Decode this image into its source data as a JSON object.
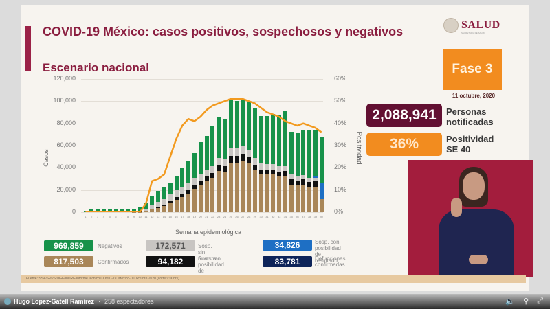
{
  "header": {
    "title": "COVID-19 México: casos positivos, sospechosos y negativos",
    "subtitle": "Escenario nacional",
    "logo_text": "SALUD",
    "logo_sub": "SECRETARÍA DE SALUD",
    "phase": "Fase 3",
    "date": "11 octubre, 2020"
  },
  "stats": {
    "notified_value": "2,088,941",
    "notified_label_1": "Personas",
    "notified_label_2": "notificadas",
    "positivity_value": "36%",
    "positivity_label_1": "Positividad",
    "positivity_label_2": "SE 40"
  },
  "legend": {
    "negativos_value": "969,859",
    "negativos_label": "Negativos",
    "confirmados_value": "817,503",
    "confirmados_label": "Confirmados",
    "sin_muestra_value": "172,571",
    "sin_muestra_label": "Sosp. sin muestra",
    "sin_posibilidad_value": "94,182",
    "sin_posibilidad_label_1": "Sosp. sin posibilidad",
    "sin_posibilidad_label_2": "de resultado",
    "con_posibilidad_value": "34,826",
    "con_posibilidad_label_1": "Sosp. con posibilidad",
    "con_posibilidad_label_2": "de resultado",
    "defunciones_value": "83,781",
    "defunciones_label_1": "Defunciones",
    "defunciones_label_2": "confirmadas"
  },
  "colors": {
    "confirmados": "#a98658",
    "sin_posibilidad": "#111111",
    "sin_muestra": "#c8c5c2",
    "negativos": "#17924a",
    "con_posibilidad": "#1e6fc4",
    "defunciones": "#0e2459",
    "positividad": "#f29a1f",
    "title": "#8a1d3f"
  },
  "source": "Fuente: SSA/SPPS/DGE/InDRE/Informe técnico COVID-19 /México- 11 octubre 2020 (corte 9:00hrs)",
  "stream": {
    "channel": "Hugo Lopez-Gatell Ramirez",
    "separator": "·",
    "viewers": "258 espectadores"
  },
  "chart_data": {
    "type": "bar",
    "stacked": true,
    "title": "COVID-19 México: casos positivos, sospechosos y negativos",
    "xlabel": "Semana epidemiológica",
    "ylabel": "Casos",
    "y2label": "Positividad",
    "ylim": [
      0,
      120000
    ],
    "y2lim": [
      0,
      60
    ],
    "yticks": [
      "0",
      "20,000",
      "40,000",
      "60,000",
      "80,000",
      "100,000",
      "120,000"
    ],
    "y2ticks": [
      "0%",
      "10%",
      "20%",
      "30%",
      "40%",
      "50%",
      "60%"
    ],
    "grid": true,
    "categories": [
      "1",
      "2",
      "3",
      "4",
      "5",
      "6",
      "7",
      "8",
      "9",
      "10",
      "11",
      "12",
      "13",
      "14",
      "15",
      "16",
      "17",
      "18",
      "19",
      "20",
      "21",
      "22",
      "23",
      "24",
      "25",
      "26",
      "27",
      "28",
      "29",
      "30",
      "31",
      "32",
      "33",
      "34",
      "35",
      "36",
      "37",
      "38",
      "39",
      "40"
    ],
    "series": [
      {
        "name": "Confirmados",
        "values": [
          0,
          0,
          0,
          0,
          0,
          0,
          0,
          0,
          100,
          300,
          1000,
          2500,
          4000,
          5500,
          8500,
          11000,
          13500,
          17000,
          21000,
          24000,
          28000,
          31000,
          37000,
          36000,
          44000,
          44000,
          46000,
          44000,
          38000,
          34000,
          34000,
          34000,
          32000,
          32000,
          25000,
          24000,
          25000,
          22000,
          22000,
          12000
        ]
      },
      {
        "name": "Sosp. sin posibilidad de resultado",
        "values": [
          0,
          0,
          0,
          0,
          0,
          0,
          0,
          0,
          0,
          100,
          300,
          700,
          1000,
          1500,
          2000,
          2500,
          3000,
          3500,
          4000,
          4000,
          4500,
          4500,
          5500,
          5500,
          7000,
          7000,
          6500,
          5500,
          5000,
          4500,
          4500,
          4500,
          4500,
          5000,
          5000,
          4500,
          5500,
          5500,
          6000,
          0
        ]
      },
      {
        "name": "Sosp. sin muestra",
        "values": [
          0,
          0,
          0,
          0,
          0,
          0,
          0,
          0,
          500,
          800,
          1500,
          3000,
          4500,
          5000,
          5500,
          6500,
          6500,
          6000,
          6000,
          6000,
          6000,
          6000,
          6500,
          6500,
          7000,
          7000,
          7000,
          6500,
          6000,
          6000,
          5000,
          5000,
          5000,
          4500,
          4500,
          3500,
          3000,
          3500,
          3000,
          0
        ]
      },
      {
        "name": "Sosp. con posibilidad de resultado",
        "values": [
          0,
          0,
          0,
          0,
          0,
          0,
          0,
          0,
          0,
          0,
          0,
          0,
          0,
          0,
          0,
          0,
          0,
          0,
          0,
          0,
          0,
          0,
          0,
          0,
          0,
          0,
          0,
          0,
          0,
          0,
          0,
          0,
          0,
          0,
          0,
          0,
          0,
          0,
          1500,
          14000
        ]
      },
      {
        "name": "Negativos",
        "values": [
          1500,
          2500,
          2500,
          3000,
          2500,
          2500,
          2500,
          2500,
          2500,
          3000,
          5000,
          8000,
          9500,
          10000,
          10500,
          13000,
          16500,
          19000,
          22000,
          29000,
          30000,
          36000,
          37000,
          36000,
          43000,
          42000,
          42000,
          44000,
          45000,
          42000,
          43000,
          45000,
          46000,
          50000,
          38000,
          39000,
          40000,
          43000,
          41000,
          42000
        ]
      },
      {
        "name": "Positividad (%)",
        "axis": "y2",
        "type": "line",
        "values": [
          0,
          0,
          0,
          0,
          0,
          0,
          0,
          0,
          0,
          0,
          4,
          14,
          15,
          17,
          25,
          33,
          39,
          42,
          41,
          43,
          46,
          48,
          49,
          50,
          51,
          51,
          51,
          50,
          49,
          47,
          45,
          44,
          43,
          41,
          40,
          39,
          40,
          39,
          38,
          36
        ]
      }
    ]
  }
}
